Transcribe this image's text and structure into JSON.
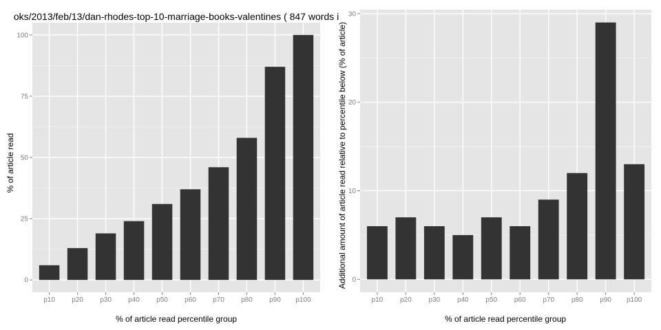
{
  "chart_data": [
    {
      "type": "bar",
      "title": "oks/2013/feb/13/dan-rhodes-top-10-marriage-books-valentines ( 847 words i",
      "xlabel": "% of article read percentile group",
      "ylabel": "% of article read",
      "categories": [
        "p10",
        "p20",
        "p30",
        "p40",
        "p50",
        "p60",
        "p70",
        "p80",
        "p90",
        "p100"
      ],
      "values": [
        6,
        13,
        19,
        24,
        31,
        37,
        46,
        58,
        87,
        100
      ],
      "yticks": [
        "0",
        "25",
        "50",
        "75",
        "100"
      ],
      "ytick_values": [
        0,
        25,
        50,
        75,
        100
      ],
      "ylim": [
        -5,
        105
      ],
      "grid": true,
      "colors": {
        "bar": "#333333",
        "panel": "#e5e5e5",
        "grid_major": "#ffffff",
        "grid_minor": "#f2f2f2"
      }
    },
    {
      "type": "bar",
      "title": "",
      "xlabel": "% of article read percentile group",
      "ylabel": "Additional amount of article read relative to percentile below (% of article)",
      "categories": [
        "p10",
        "p20",
        "p30",
        "p40",
        "p50",
        "p60",
        "p70",
        "p80",
        "p90",
        "p100"
      ],
      "values": [
        6,
        7,
        6,
        5,
        7,
        6,
        9,
        12,
        29,
        13
      ],
      "yticks": [
        "0",
        "10",
        "20",
        "30"
      ],
      "ytick_values": [
        0,
        10,
        20,
        30
      ],
      "ylim": [
        -1.45,
        30.45
      ],
      "grid": true,
      "colors": {
        "bar": "#333333",
        "panel": "#e5e5e5",
        "grid_major": "#ffffff",
        "grid_minor": "#f2f2f2"
      }
    }
  ]
}
